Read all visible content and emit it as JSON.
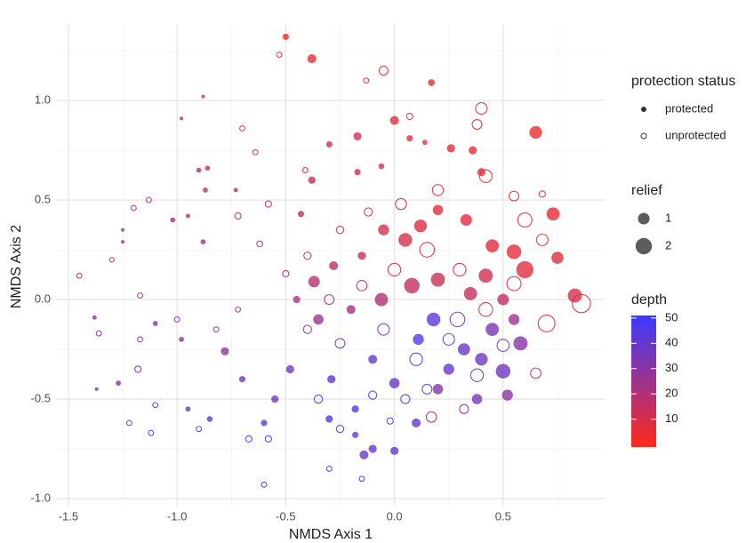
{
  "chart_data": {
    "type": "scatter",
    "x_label": "NMDS Axis 1",
    "y_label": "NMDS Axis 2",
    "xlim": [
      -1.557,
      0.967
    ],
    "ylim": [
      -1.04,
      1.38
    ],
    "xticks": [
      -1.5,
      -1.0,
      -0.5,
      0.0,
      0.5
    ],
    "yticks": [
      -1.0,
      -0.5,
      0.0,
      0.5,
      1.0
    ],
    "xticks_labels": [
      "-1.5",
      "-1.0",
      "-0.5",
      "0.0",
      "0.5"
    ],
    "yticks_labels": [
      "-1.0",
      "-0.5",
      "0.0",
      "0.5",
      "1.0"
    ],
    "x_minor": [
      -1.25,
      -0.75,
      -0.25,
      0.25,
      0.75
    ],
    "y_minor": [
      -0.75,
      -0.25,
      0.25,
      0.75,
      1.25
    ],
    "grid": true,
    "shape_legend_title": "protection status",
    "size_legend_title": "relief",
    "size_legend": [
      1,
      2
    ],
    "color_legend_title": "depth",
    "color_lim": [
      -1,
      51
    ],
    "color_ticks": [
      10,
      20,
      30,
      40,
      50
    ],
    "color_low": "#ff2a1a",
    "color_high": "#3b3bff",
    "series": [
      {
        "name": "protected",
        "filled": true,
        "x": [
          -0.5,
          -0.38,
          0.17,
          -0.88,
          -0.98,
          -0.9,
          -0.86,
          -0.87,
          -0.73,
          -0.95,
          -1.02,
          -1.25,
          -1.25,
          -0.88,
          -1.38,
          -1.37,
          -1.27,
          -1.1,
          -0.98,
          -0.95,
          -0.85,
          -0.78,
          -0.7,
          -0.43,
          -0.38,
          -0.3,
          -0.17,
          -0.17,
          -0.06,
          0.0,
          0.07,
          0.14,
          0.26,
          0.36,
          0.4,
          0.65,
          0.73,
          0.75,
          0.83,
          0.6,
          0.55,
          0.45,
          0.33,
          0.2,
          0.12,
          0.05,
          -0.05,
          -0.15,
          -0.28,
          -0.37,
          -0.45,
          -0.35,
          -0.2,
          -0.06,
          0.08,
          0.2,
          0.35,
          0.42,
          0.5,
          0.55,
          0.45,
          0.32,
          0.18,
          0.25,
          0.4,
          0.5,
          0.58,
          0.38,
          0.52,
          0.0,
          -0.1,
          -0.18,
          -0.3,
          -0.29,
          -0.48,
          -0.55,
          -0.6,
          -0.18,
          -0.1,
          0.0,
          -0.14,
          0.1,
          0.2,
          0.11
        ],
        "y": [
          1.32,
          1.21,
          1.09,
          1.02,
          0.91,
          0.65,
          0.66,
          0.55,
          0.55,
          0.42,
          0.4,
          0.35,
          0.29,
          0.29,
          -0.09,
          -0.45,
          -0.42,
          -0.12,
          -0.2,
          -0.55,
          -0.6,
          -0.26,
          -0.4,
          0.43,
          0.6,
          0.78,
          0.82,
          0.64,
          0.67,
          0.9,
          0.81,
          0.79,
          0.76,
          0.75,
          0.64,
          0.84,
          0.43,
          0.21,
          0.02,
          0.15,
          0.24,
          0.27,
          0.4,
          0.45,
          0.37,
          0.3,
          0.35,
          0.22,
          0.17,
          0.09,
          0.0,
          -0.1,
          -0.05,
          0.0,
          0.07,
          0.1,
          0.03,
          0.12,
          0.0,
          -0.1,
          -0.15,
          -0.25,
          -0.1,
          -0.35,
          -0.3,
          -0.36,
          -0.22,
          -0.5,
          -0.48,
          -0.42,
          -0.3,
          -0.55,
          -0.6,
          -0.4,
          -0.35,
          -0.5,
          -0.62,
          -0.68,
          -0.75,
          -0.76,
          -0.78,
          -0.62,
          -0.45,
          -0.2
        ],
        "size": [
          0.3,
          0.6,
          0.35,
          0.1,
          0.1,
          0.2,
          0.2,
          0.2,
          0.15,
          0.15,
          0.2,
          0.1,
          0.1,
          0.2,
          0.15,
          0.1,
          0.2,
          0.2,
          0.2,
          0.2,
          0.25,
          0.5,
          0.3,
          0.3,
          0.4,
          0.3,
          0.5,
          0.3,
          0.25,
          0.6,
          0.3,
          0.2,
          0.5,
          0.5,
          0.5,
          1.2,
          1.3,
          1.1,
          1.5,
          2.2,
          1.6,
          1.3,
          1.0,
          0.8,
          1.2,
          1.4,
          0.9,
          0.5,
          0.6,
          1.0,
          0.4,
          0.8,
          0.6,
          1.3,
          1.8,
          1.5,
          1.3,
          1.5,
          1.0,
          0.9,
          1.3,
          1.1,
          1.4,
          0.9,
          1.2,
          1.6,
          1.5,
          0.8,
          0.9,
          0.8,
          0.6,
          0.4,
          0.4,
          0.5,
          0.5,
          0.4,
          0.3,
          0.3,
          0.5,
          0.5,
          0.6,
          0.6,
          0.8,
          0.9
        ],
        "depth": [
          3,
          4,
          5,
          12,
          14,
          17,
          17,
          18,
          18,
          20,
          22,
          23,
          23,
          22,
          28,
          35,
          34,
          30,
          32,
          40,
          42,
          28,
          34,
          18,
          14,
          10,
          9,
          11,
          10,
          7,
          7,
          6,
          6,
          5,
          7,
          4,
          5,
          7,
          9,
          7,
          6,
          7,
          6,
          7,
          9,
          10,
          10,
          14,
          16,
          18,
          22,
          25,
          24,
          20,
          15,
          13,
          15,
          12,
          15,
          25,
          34,
          38,
          42,
          40,
          38,
          36,
          32,
          35,
          30,
          38,
          40,
          44,
          47,
          42,
          38,
          38,
          42,
          42,
          40,
          42,
          38,
          38,
          33,
          45
        ]
      },
      {
        "name": "unprotected",
        "filled": false,
        "x": [
          -0.53,
          -0.05,
          -0.13,
          0.4,
          0.38,
          0.07,
          -0.7,
          -0.64,
          -0.41,
          -0.58,
          -0.72,
          -1.13,
          -1.2,
          -1.3,
          -1.45,
          -1.36,
          -1.18,
          -1.22,
          -1.1,
          -1.12,
          -1.17,
          -1.17,
          -1.0,
          -0.9,
          -0.67,
          -0.58,
          -0.6,
          -0.3,
          -0.15,
          -0.02,
          0.17,
          0.32,
          -0.82,
          -0.72,
          -0.5,
          -0.62,
          -0.4,
          -0.25,
          -0.12,
          0.03,
          0.2,
          0.42,
          0.55,
          0.68,
          0.7,
          0.86,
          0.65,
          0.55,
          0.42,
          0.3,
          0.15,
          0.0,
          -0.15,
          -0.3,
          -0.4,
          -0.25,
          -0.05,
          0.1,
          0.25,
          0.38,
          0.15,
          0.05,
          -0.1,
          -0.35,
          -0.25,
          0.5,
          0.6,
          0.68,
          0.29
        ],
        "y": [
          1.23,
          1.15,
          1.1,
          0.96,
          0.88,
          0.92,
          0.86,
          0.74,
          0.65,
          0.48,
          0.42,
          0.5,
          0.46,
          0.2,
          0.12,
          -0.17,
          -0.35,
          -0.62,
          -0.53,
          -0.67,
          -0.2,
          0.02,
          -0.1,
          -0.65,
          -0.7,
          -0.7,
          -0.93,
          -0.85,
          -0.9,
          -0.61,
          -0.59,
          -0.55,
          -0.15,
          -0.05,
          0.13,
          0.28,
          0.22,
          0.35,
          0.44,
          0.48,
          0.55,
          0.62,
          0.52,
          0.3,
          -0.12,
          -0.02,
          -0.37,
          0.08,
          -0.05,
          0.15,
          0.25,
          0.15,
          0.07,
          0.0,
          -0.15,
          -0.22,
          -0.15,
          -0.3,
          -0.2,
          -0.38,
          -0.45,
          -0.5,
          -0.48,
          -0.5,
          -0.65,
          -0.23,
          0.4,
          0.53,
          -0.1
        ],
        "size": [
          0.2,
          0.6,
          0.2,
          1.0,
          0.7,
          0.3,
          0.2,
          0.2,
          0.2,
          0.3,
          0.3,
          0.2,
          0.2,
          0.15,
          0.2,
          0.2,
          0.3,
          0.2,
          0.2,
          0.2,
          0.2,
          0.2,
          0.2,
          0.2,
          0.3,
          0.3,
          0.2,
          0.2,
          0.2,
          0.3,
          0.8,
          0.6,
          0.2,
          0.2,
          0.3,
          0.25,
          0.4,
          0.4,
          0.5,
          0.9,
          0.9,
          1.2,
          0.7,
          1.0,
          2.1,
          2.5,
          0.8,
          1.5,
          1.4,
          1.2,
          1.6,
          1.2,
          0.8,
          0.7,
          0.5,
          0.7,
          1.0,
          1.2,
          1.0,
          1.2,
          0.7,
          0.6,
          0.5,
          0.5,
          0.4,
          1.1,
          1.5,
          0.3,
          1.6
        ],
        "depth": [
          5,
          7,
          7,
          5,
          6,
          8,
          12,
          14,
          15,
          18,
          20,
          23,
          25,
          24,
          26,
          30,
          34,
          38,
          40,
          42,
          30,
          27,
          32,
          42,
          45,
          44,
          46,
          47,
          48,
          40,
          22,
          28,
          26,
          25,
          22,
          20,
          19,
          16,
          12,
          11,
          9,
          6,
          5,
          6,
          9,
          10,
          13,
          10,
          13,
          12,
          11,
          14,
          18,
          22,
          28,
          33,
          36,
          40,
          41,
          36,
          40,
          42,
          44,
          40,
          42,
          34,
          7,
          6,
          38
        ]
      }
    ]
  }
}
